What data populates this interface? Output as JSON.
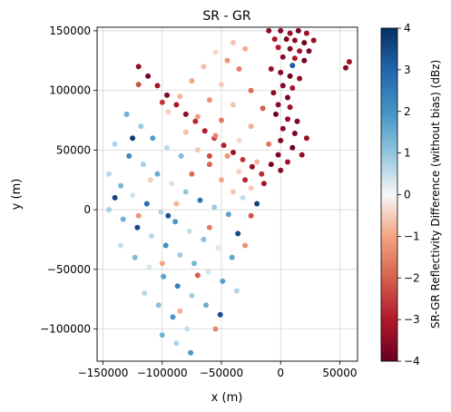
{
  "chart_data": {
    "type": "scatter",
    "title": "SR - GR",
    "xlabel": "x (m)",
    "ylabel": "y (m)",
    "xlim": [
      -155000,
      65000
    ],
    "ylim": [
      -127000,
      153000
    ],
    "xticks": [
      -150000,
      -100000,
      -50000,
      0,
      50000
    ],
    "xtick_labels": [
      "−150000",
      "−100000",
      "−50000",
      "0",
      "50000"
    ],
    "yticks": [
      -100000,
      -50000,
      0,
      50000,
      100000,
      150000
    ],
    "ytick_labels": [
      "−100000",
      "−50000",
      "0",
      "50000",
      "100000",
      "150000"
    ],
    "grid": true,
    "colorbar": {
      "label": "SR-GR Reflectivity Difference (without bias) (dBz)",
      "colormap": "RdBu",
      "range": [
        -4,
        4
      ],
      "ticks": [
        -4,
        -3,
        -2,
        -1,
        0,
        1,
        2,
        3,
        4
      ],
      "tick_labels": [
        "−4",
        "−3",
        "−2",
        "−1",
        "0",
        "1",
        "2",
        "3",
        "4"
      ]
    },
    "footprint_corners": [
      [
        -78000,
        -127000
      ],
      [
        -148000,
        -30000
      ],
      [
        -148000,
        2000
      ],
      [
        -45000,
        147000
      ],
      [
        0,
        152000
      ],
      [
        30000,
        140000
      ],
      [
        10000,
        30000
      ]
    ],
    "series": [
      {
        "values_description": "",
        "points": [
          [
            -10000,
            150000,
            -3.5
          ],
          [
            0,
            150000,
            -3.6
          ],
          [
            8000,
            148000,
            -3.4
          ],
          [
            15000,
            150000,
            -3.8
          ],
          [
            22000,
            148000,
            -3.3
          ],
          [
            -5000,
            143000,
            -3.1
          ],
          [
            5000,
            143000,
            -3.7
          ],
          [
            12000,
            142000,
            -3.5
          ],
          [
            20000,
            140000,
            -3.9
          ],
          [
            28000,
            142000,
            -3.4
          ],
          [
            -2000,
            136000,
            -3.0
          ],
          [
            8000,
            135000,
            -3.6
          ],
          [
            16000,
            133000,
            -3.2
          ],
          [
            24000,
            133000,
            -3.7
          ],
          [
            2000,
            128000,
            -3.5
          ],
          [
            12000,
            127000,
            -3.1
          ],
          [
            20000,
            125000,
            -3.8
          ],
          [
            10000,
            121000,
            3.2
          ],
          [
            -8000,
            118000,
            -3.3
          ],
          [
            0,
            115000,
            -3.6
          ],
          [
            8000,
            112000,
            -3.9
          ],
          [
            16000,
            110000,
            -3.4
          ],
          [
            2000,
            104000,
            -3.7
          ],
          [
            10000,
            102000,
            -3.2
          ],
          [
            -6000,
            98000,
            -3.5
          ],
          [
            6000,
            94000,
            -3.8
          ],
          [
            -2000,
            88000,
            -3.6
          ],
          [
            8000,
            86000,
            -3.3
          ],
          [
            -4000,
            80000,
            -3.9
          ],
          [
            6000,
            76000,
            -3.4
          ],
          [
            14000,
            74000,
            -3.7
          ],
          [
            2000,
            68000,
            -3.5
          ],
          [
            12000,
            64000,
            -3.8
          ],
          [
            22000,
            60000,
            -3.3
          ],
          [
            0,
            58000,
            -3.6
          ],
          [
            10000,
            52000,
            -3.9
          ],
          [
            18000,
            46000,
            -3.4
          ],
          [
            -2000,
            46000,
            -3.7
          ],
          [
            6000,
            40000,
            -3.2
          ],
          [
            -8000,
            38000,
            -3.8
          ],
          [
            0,
            33000,
            -3.5
          ],
          [
            55000,
            119000,
            -3.5
          ],
          [
            58000,
            124000,
            -3.3
          ],
          [
            -120000,
            120000,
            -3.4
          ],
          [
            -112000,
            112000,
            -3.8
          ],
          [
            -104000,
            104000,
            -3.2
          ],
          [
            -96000,
            96000,
            -3.6
          ],
          [
            -88000,
            88000,
            -3.1
          ],
          [
            -80000,
            80000,
            -3.5
          ],
          [
            -72000,
            74000,
            -2.8
          ],
          [
            -64000,
            66000,
            -3.0
          ],
          [
            -56000,
            60000,
            -2.5
          ],
          [
            -48000,
            54000,
            -2.9
          ],
          [
            -40000,
            48000,
            -3.2
          ],
          [
            -32000,
            42000,
            -2.6
          ],
          [
            -24000,
            36000,
            -3.4
          ],
          [
            -16000,
            30000,
            -2.7
          ],
          [
            -120000,
            105000,
            -2.2
          ],
          [
            -100000,
            90000,
            -2.6
          ],
          [
            -60000,
            45000,
            -2.3
          ],
          [
            -30000,
            25000,
            -2.8
          ],
          [
            -14000,
            22000,
            -3.1
          ],
          [
            -40000,
            140000,
            -0.6
          ],
          [
            -30000,
            135000,
            -0.9
          ],
          [
            -55000,
            132000,
            -0.4
          ],
          [
            -45000,
            125000,
            -1.2
          ],
          [
            -65000,
            120000,
            -0.7
          ],
          [
            -35000,
            118000,
            -1.5
          ],
          [
            -75000,
            108000,
            -1.0
          ],
          [
            -50000,
            105000,
            -0.5
          ],
          [
            -25000,
            100000,
            -1.8
          ],
          [
            -85000,
            95000,
            -0.8
          ],
          [
            -60000,
            92000,
            -1.3
          ],
          [
            -40000,
            88000,
            -0.6
          ],
          [
            -15000,
            85000,
            -2.0
          ],
          [
            -95000,
            82000,
            -0.5
          ],
          [
            -70000,
            78000,
            -1.1
          ],
          [
            -50000,
            75000,
            -1.6
          ],
          [
            -25000,
            70000,
            -0.9
          ],
          [
            -80000,
            65000,
            -0.7
          ],
          [
            -55000,
            62000,
            -1.4
          ],
          [
            -35000,
            58000,
            -0.4
          ],
          [
            -10000,
            55000,
            -1.7
          ],
          [
            -70000,
            50000,
            -0.6
          ],
          [
            -45000,
            45000,
            -1.2
          ],
          [
            -20000,
            40000,
            -0.8
          ],
          [
            -60000,
            38000,
            -1.9
          ],
          [
            -35000,
            32000,
            -0.5
          ],
          [
            -50000,
            25000,
            -1.0
          ],
          [
            -25000,
            18000,
            -0.6
          ],
          [
            -130000,
            80000,
            1.4
          ],
          [
            -118000,
            70000,
            0.9
          ],
          [
            -108000,
            60000,
            1.8
          ],
          [
            -96000,
            52000,
            0.6
          ],
          [
            -84000,
            45000,
            1.2
          ],
          [
            -140000,
            55000,
            0.7
          ],
          [
            -128000,
            45000,
            2.2
          ],
          [
            -116000,
            38000,
            0.8
          ],
          [
            -104000,
            30000,
            1.5
          ],
          [
            -92000,
            22000,
            0.4
          ],
          [
            -80000,
            15000,
            1.0
          ],
          [
            -68000,
            8000,
            2.6
          ],
          [
            -56000,
            2000,
            0.9
          ],
          [
            -44000,
            -4000,
            1.7
          ],
          [
            -32000,
            10000,
            0.5
          ],
          [
            -20000,
            5000,
            3.6
          ],
          [
            -145000,
            30000,
            0.6
          ],
          [
            -135000,
            20000,
            1.3
          ],
          [
            -125000,
            12000,
            0.4
          ],
          [
            -113000,
            5000,
            2.8
          ],
          [
            -101000,
            -2000,
            0.7
          ],
          [
            -89000,
            -10000,
            1.9
          ],
          [
            -77000,
            -18000,
            0.5
          ],
          [
            -65000,
            -25000,
            1.1
          ],
          [
            -53000,
            -32000,
            0.3
          ],
          [
            -41000,
            -40000,
            1.6
          ],
          [
            -145000,
            0,
            0.8
          ],
          [
            -133000,
            -8000,
            1.4
          ],
          [
            -121000,
            -15000,
            3.5
          ],
          [
            -109000,
            -22000,
            0.6
          ],
          [
            -97000,
            -30000,
            2.1
          ],
          [
            -85000,
            -38000,
            0.9
          ],
          [
            -73000,
            -45000,
            1.3
          ],
          [
            -61000,
            -52000,
            0.4
          ],
          [
            -49000,
            -60000,
            1.8
          ],
          [
            -37000,
            -68000,
            0.7
          ],
          [
            -135000,
            -30000,
            0.5
          ],
          [
            -123000,
            -40000,
            1.2
          ],
          [
            -111000,
            -48000,
            0.3
          ],
          [
            -99000,
            -56000,
            1.7
          ],
          [
            -87000,
            -64000,
            2.4
          ],
          [
            -75000,
            -72000,
            0.8
          ],
          [
            -63000,
            -80000,
            1.5
          ],
          [
            -51000,
            -88000,
            3.4
          ],
          [
            -115000,
            -70000,
            0.6
          ],
          [
            -103000,
            -80000,
            1.1
          ],
          [
            -91000,
            -90000,
            2.0
          ],
          [
            -79000,
            -100000,
            0.5
          ],
          [
            -100000,
            -105000,
            1.4
          ],
          [
            -88000,
            -112000,
            0.7
          ],
          [
            -76000,
            -120000,
            1.9
          ],
          [
            -140000,
            10000,
            3.6
          ],
          [
            -125000,
            60000,
            3.8
          ],
          [
            -95000,
            -5000,
            3.3
          ],
          [
            -36000,
            -20000,
            3.5
          ],
          [
            -120000,
            -5000,
            -1.2
          ],
          [
            -88000,
            5000,
            -0.8
          ],
          [
            -60000,
            -15000,
            -1.6
          ],
          [
            -40000,
            15000,
            -0.6
          ],
          [
            -100000,
            -45000,
            -1.0
          ],
          [
            -70000,
            -55000,
            -2.0
          ],
          [
            -30000,
            -30000,
            -1.3
          ],
          [
            -110000,
            25000,
            -0.5
          ],
          [
            -85000,
            -85000,
            -0.9
          ],
          [
            -55000,
            -100000,
            -1.4
          ],
          [
            -25000,
            -5000,
            -2.2
          ],
          [
            -75000,
            30000,
            -1.8
          ]
        ]
      }
    ]
  }
}
